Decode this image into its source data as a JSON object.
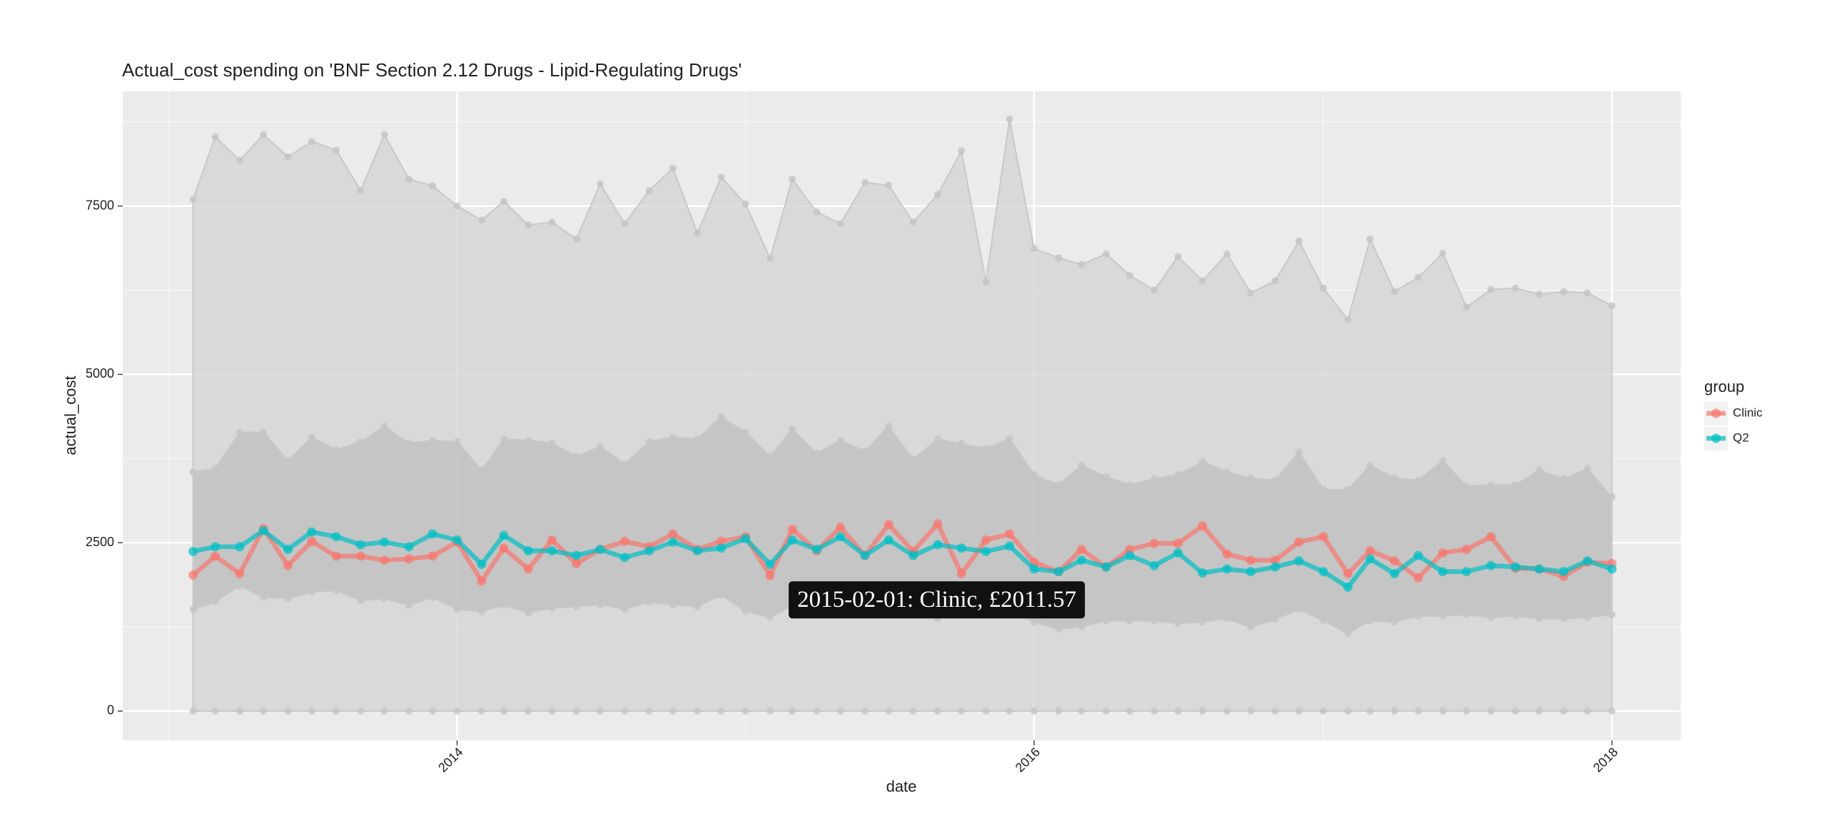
{
  "chart_data": {
    "type": "line",
    "title": "Actual_cost spending on 'BNF Section 2.12 Drugs - Lipid-Regulating Drugs'",
    "xlabel": "date",
    "ylabel": "actual_cost",
    "legend_title": "group",
    "legend": "right",
    "grid": true,
    "tooltip": "2015-02-01: Clinic, £2011.57",
    "x": [
      "2013-02-01",
      "2013-03-01",
      "2013-04-01",
      "2013-05-01",
      "2013-06-01",
      "2013-07-01",
      "2013-08-01",
      "2013-09-01",
      "2013-10-01",
      "2013-11-01",
      "2013-12-01",
      "2014-01-01",
      "2014-02-01",
      "2014-03-01",
      "2014-04-01",
      "2014-05-01",
      "2014-06-01",
      "2014-07-01",
      "2014-08-01",
      "2014-09-01",
      "2014-10-01",
      "2014-11-01",
      "2014-12-01",
      "2015-01-01",
      "2015-02-01",
      "2015-03-01",
      "2015-04-01",
      "2015-05-01",
      "2015-06-01",
      "2015-07-01",
      "2015-08-01",
      "2015-09-01",
      "2015-10-01",
      "2015-11-01",
      "2015-12-01",
      "2016-01-01",
      "2016-02-01",
      "2016-03-01",
      "2016-04-01",
      "2016-05-01",
      "2016-06-01",
      "2016-07-01",
      "2016-08-01",
      "2016-09-01",
      "2016-10-01",
      "2016-11-01",
      "2016-12-01",
      "2017-01-01",
      "2017-02-01",
      "2017-03-01",
      "2017-04-01",
      "2017-05-01",
      "2017-06-01",
      "2017-07-01",
      "2017-08-01",
      "2017-09-01",
      "2017-10-01",
      "2017-11-01",
      "2017-12-01",
      "2018-01-01"
    ],
    "xlim": [
      "2012-11-04",
      "2018-03-29"
    ],
    "xticks": [
      {
        "value": "2014-01-01",
        "label": "2014"
      },
      {
        "value": "2016-01-01",
        "label": "2016"
      },
      {
        "value": "2018-01-01",
        "label": "2018"
      }
    ],
    "ylim": [
      -435,
      9203
    ],
    "yticks": [
      0,
      2500,
      5000,
      7500
    ],
    "ribbons": [
      {
        "color": "#d3d3d3",
        "upper": [
          7600,
          8530,
          8180,
          8560,
          8230,
          8460,
          8330,
          7730,
          8560,
          7900,
          7800,
          7500,
          7290,
          7570,
          7220,
          7260,
          7010,
          7830,
          7240,
          7730,
          8060,
          7100,
          7930,
          7530,
          6720,
          7900,
          7410,
          7240,
          7850,
          7810,
          7260,
          7670,
          8320,
          6370,
          8790,
          6870,
          6730,
          6630,
          6790,
          6470,
          6250,
          6750,
          6390,
          6790,
          6210,
          6390,
          6980,
          6280,
          5810,
          7010,
          6230,
          6440,
          6800,
          6000,
          6260,
          6280,
          6190,
          6230,
          6210,
          6020
        ],
        "lower": [
          0,
          0,
          0,
          0,
          0,
          0,
          0,
          0,
          0,
          0,
          0,
          0,
          0,
          0,
          0,
          0,
          0,
          0,
          0,
          0,
          0,
          0,
          0,
          0,
          0,
          0,
          0,
          0,
          0,
          0,
          0,
          0,
          0,
          0,
          0,
          0,
          0,
          0,
          0,
          0,
          0,
          0,
          0,
          0,
          0,
          0,
          0,
          0,
          0,
          0,
          0,
          0,
          0,
          0,
          0,
          0,
          0,
          0,
          0,
          0
        ]
      },
      {
        "color": "#bdbdbd",
        "upper": [
          3550,
          3600,
          4140,
          4140,
          3720,
          4070,
          3880,
          4000,
          4230,
          3980,
          4020,
          4000,
          3580,
          4040,
          4020,
          3980,
          3780,
          3930,
          3670,
          4000,
          4070,
          4040,
          4370,
          4140,
          3780,
          4190,
          3830,
          4020,
          3860,
          4230,
          3740,
          4040,
          3970,
          3900,
          4050,
          3510,
          3360,
          3650,
          3480,
          3360,
          3450,
          3510,
          3710,
          3550,
          3460,
          3430,
          3850,
          3290,
          3290,
          3650,
          3460,
          3430,
          3720,
          3340,
          3360,
          3360,
          3580,
          3450,
          3600,
          3180
        ],
        "lower": [
          1510,
          1620,
          1860,
          1690,
          1670,
          1770,
          1790,
          1640,
          1670,
          1570,
          1690,
          1510,
          1480,
          1570,
          1460,
          1530,
          1550,
          1580,
          1510,
          1620,
          1580,
          1550,
          1720,
          1480,
          1390,
          1570,
          1510,
          1550,
          1510,
          1480,
          1430,
          1370,
          1440,
          1460,
          1510,
          1320,
          1220,
          1250,
          1340,
          1340,
          1340,
          1300,
          1320,
          1370,
          1240,
          1360,
          1510,
          1340,
          1150,
          1340,
          1320,
          1410,
          1410,
          1430,
          1390,
          1410,
          1370,
          1370,
          1390,
          1430
        ]
      }
    ],
    "series": [
      {
        "name": "Clinic",
        "color": "#f8766d",
        "values": [
          2020,
          2300,
          2040,
          2710,
          2160,
          2520,
          2300,
          2300,
          2240,
          2260,
          2300,
          2510,
          1930,
          2420,
          2110,
          2540,
          2190,
          2400,
          2520,
          2440,
          2630,
          2400,
          2520,
          2590,
          2011.57,
          2700,
          2380,
          2730,
          2310,
          2770,
          2370,
          2780,
          2040,
          2540,
          2630,
          2210,
          2070,
          2400,
          2140,
          2400,
          2490,
          2490,
          2750,
          2330,
          2240,
          2240,
          2510,
          2590,
          2040,
          2380,
          2230,
          1980,
          2350,
          2400,
          2590,
          2120,
          2110,
          2000,
          2210,
          2190
        ]
      },
      {
        "name": "Q2",
        "color": "#00bfc4",
        "values": [
          2370,
          2440,
          2440,
          2680,
          2400,
          2660,
          2590,
          2470,
          2510,
          2440,
          2630,
          2540,
          2180,
          2610,
          2380,
          2380,
          2310,
          2400,
          2280,
          2380,
          2510,
          2380,
          2420,
          2560,
          2180,
          2540,
          2400,
          2590,
          2310,
          2540,
          2310,
          2470,
          2420,
          2370,
          2450,
          2110,
          2070,
          2240,
          2140,
          2310,
          2160,
          2350,
          2050,
          2110,
          2070,
          2140,
          2230,
          2070,
          1840,
          2260,
          2040,
          2310,
          2070,
          2070,
          2160,
          2140,
          2110,
          2070,
          2230,
          2110
        ]
      }
    ]
  }
}
